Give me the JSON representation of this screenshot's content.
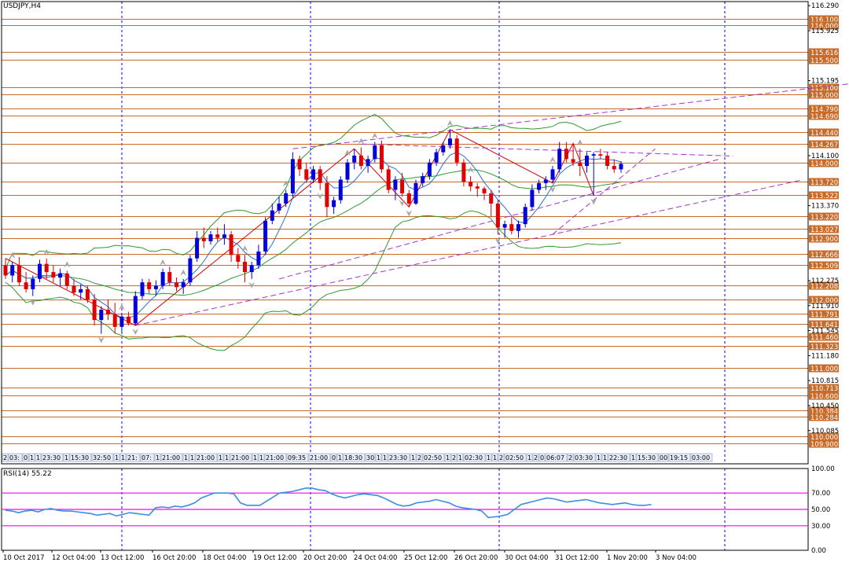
{
  "window": {
    "title": "USDJPY,H4"
  },
  "colors": {
    "bull": "#0000dd",
    "bear": "#e00000",
    "level_line": "#c86a28",
    "level_tag_bg": "#c86a28",
    "level_tag_text": "#ffffff",
    "trend_line": "#aa33cc",
    "band_line": "#2e9a2e",
    "fast_line": "#2b6fd6",
    "rsi_line": "#3a8fe0",
    "rsi_level": "#ff00ff",
    "vgrid": "#0000ff",
    "zigzag": "#cc0000",
    "arrow": "#a8a8a8"
  },
  "chart_data": {
    "type": "candlestick",
    "symbol": "USDJPY",
    "timeframe": "H4",
    "ylim": [
      109.6,
      116.35
    ],
    "price_ticks": [
      "116.290",
      "115.925",
      "115.195",
      "114.100",
      "113.370",
      "112.275",
      "111.910",
      "111.545",
      "111.180",
      "110.815",
      "110.450",
      "110.085"
    ],
    "levels": [
      "116.100",
      "116.000",
      "115.616",
      "115.500",
      "115.100",
      "115.000",
      "114.790",
      "114.690",
      "114.440",
      "114.267",
      "114.000",
      "113.720",
      "113.522",
      "113.220",
      "113.027",
      "112.900",
      "112.666",
      "112.509",
      "112.208",
      "112.000",
      "111.791",
      "111.641",
      "111.460",
      "111.323",
      "111.000",
      "110.713",
      "110.600",
      "110.384",
      "110.284",
      "110.000",
      "109.900"
    ],
    "level_values": [
      116.1,
      116.0,
      115.616,
      115.5,
      115.1,
      115.0,
      114.79,
      114.69,
      114.44,
      114.267,
      114.0,
      113.72,
      113.522,
      113.22,
      113.027,
      112.9,
      112.666,
      112.509,
      112.208,
      112.0,
      111.791,
      111.641,
      111.46,
      111.323,
      111.0,
      110.713,
      110.6,
      110.384,
      110.284,
      110.0,
      109.9
    ],
    "candles": [
      [
        112.5,
        112.6,
        112.3,
        112.35
      ],
      [
        112.35,
        112.55,
        112.25,
        112.5
      ],
      [
        112.5,
        112.62,
        112.2,
        112.25
      ],
      [
        112.25,
        112.4,
        112.1,
        112.15
      ],
      [
        112.15,
        112.35,
        112.05,
        112.3
      ],
      [
        112.3,
        112.58,
        112.25,
        112.52
      ],
      [
        112.52,
        112.6,
        112.3,
        112.4
      ],
      [
        112.4,
        112.5,
        112.25,
        112.32
      ],
      [
        112.32,
        112.45,
        112.2,
        112.38
      ],
      [
        112.38,
        112.42,
        112.15,
        112.2
      ],
      [
        112.2,
        112.3,
        112.05,
        112.1
      ],
      [
        112.1,
        112.22,
        112.0,
        112.15
      ],
      [
        112.15,
        112.2,
        111.95,
        112.0
      ],
      [
        112.0,
        112.08,
        111.62,
        111.7
      ],
      [
        111.7,
        111.9,
        111.5,
        111.85
      ],
      [
        111.85,
        112.0,
        111.7,
        111.78
      ],
      [
        111.78,
        111.95,
        111.5,
        111.6
      ],
      [
        111.6,
        111.8,
        111.52,
        111.75
      ],
      [
        111.75,
        111.82,
        111.62,
        111.65
      ],
      [
        111.65,
        112.12,
        111.62,
        112.05
      ],
      [
        112.05,
        112.3,
        112.0,
        112.25
      ],
      [
        112.25,
        112.3,
        112.08,
        112.15
      ],
      [
        112.15,
        112.28,
        112.05,
        112.2
      ],
      [
        112.2,
        112.45,
        112.15,
        112.4
      ],
      [
        112.4,
        112.48,
        112.2,
        112.25
      ],
      [
        112.25,
        112.32,
        112.12,
        112.18
      ],
      [
        112.18,
        112.3,
        112.08,
        112.25
      ],
      [
        112.25,
        112.65,
        112.2,
        112.6
      ],
      [
        112.6,
        113.0,
        112.55,
        112.9
      ],
      [
        112.9,
        113.05,
        112.75,
        112.85
      ],
      [
        112.85,
        113.0,
        112.8,
        112.95
      ],
      [
        112.95,
        113.05,
        112.85,
        112.9
      ],
      [
        112.9,
        113.1,
        112.8,
        112.95
      ],
      [
        112.95,
        113.0,
        112.55,
        112.65
      ],
      [
        112.65,
        112.75,
        112.45,
        112.55
      ],
      [
        112.55,
        112.65,
        112.25,
        112.4
      ],
      [
        112.4,
        112.55,
        112.3,
        112.5
      ],
      [
        112.5,
        112.8,
        112.45,
        112.7
      ],
      [
        112.7,
        113.2,
        112.65,
        113.15
      ],
      [
        113.15,
        113.4,
        113.1,
        113.3
      ],
      [
        113.3,
        113.5,
        113.25,
        113.4
      ],
      [
        113.4,
        113.6,
        113.35,
        113.55
      ],
      [
        113.55,
        114.15,
        113.5,
        114.05
      ],
      [
        114.05,
        114.1,
        113.8,
        113.9
      ],
      [
        113.9,
        114.0,
        113.7,
        113.75
      ],
      [
        113.75,
        113.95,
        113.7,
        113.9
      ],
      [
        113.9,
        113.95,
        113.6,
        113.7
      ],
      [
        113.7,
        113.8,
        113.2,
        113.35
      ],
      [
        113.35,
        113.5,
        113.25,
        113.45
      ],
      [
        113.45,
        113.8,
        113.4,
        113.75
      ],
      [
        113.75,
        114.05,
        113.7,
        114.0
      ],
      [
        114.0,
        114.2,
        113.9,
        114.1
      ],
      [
        114.1,
        114.22,
        113.9,
        113.95
      ],
      [
        113.95,
        114.1,
        113.85,
        114.05
      ],
      [
        114.05,
        114.3,
        114.0,
        114.25
      ],
      [
        114.25,
        114.32,
        113.85,
        113.9
      ],
      [
        113.9,
        113.95,
        113.55,
        113.6
      ],
      [
        113.6,
        113.8,
        113.45,
        113.75
      ],
      [
        113.75,
        113.85,
        113.5,
        113.55
      ],
      [
        113.55,
        113.6,
        113.35,
        113.4
      ],
      [
        113.4,
        113.75,
        113.38,
        113.7
      ],
      [
        113.7,
        113.85,
        113.65,
        113.8
      ],
      [
        113.8,
        114.05,
        113.75,
        114.0
      ],
      [
        114.0,
        114.2,
        113.95,
        114.15
      ],
      [
        114.15,
        114.3,
        114.1,
        114.25
      ],
      [
        114.25,
        114.48,
        114.2,
        114.35
      ],
      [
        114.35,
        114.4,
        113.95,
        114.0
      ],
      [
        114.0,
        114.05,
        113.65,
        113.72
      ],
      [
        113.72,
        113.8,
        113.58,
        113.65
      ],
      [
        113.65,
        113.7,
        113.5,
        113.62
      ],
      [
        113.62,
        113.65,
        113.45,
        113.55
      ],
      [
        113.55,
        113.6,
        113.2,
        113.4
      ],
      [
        113.4,
        113.45,
        112.95,
        113.05
      ],
      [
        113.05,
        113.15,
        112.9,
        113.1
      ],
      [
        113.1,
        113.2,
        112.95,
        113.0
      ],
      [
        113.0,
        113.15,
        112.9,
        113.1
      ],
      [
        113.1,
        113.4,
        113.05,
        113.35
      ],
      [
        113.35,
        113.68,
        113.3,
        113.6
      ],
      [
        113.6,
        113.75,
        113.55,
        113.7
      ],
      [
        113.7,
        113.8,
        113.6,
        113.75
      ],
      [
        113.75,
        113.95,
        113.7,
        113.9
      ],
      [
        113.9,
        114.3,
        113.85,
        114.2
      ],
      [
        114.2,
        114.3,
        114.0,
        114.05
      ],
      [
        114.05,
        114.28,
        113.95,
        114.0
      ],
      [
        114.0,
        114.2,
        113.8,
        113.95
      ],
      [
        113.95,
        114.15,
        113.85,
        114.1
      ],
      [
        114.1,
        114.15,
        113.52,
        114.12
      ],
      [
        114.12,
        114.2,
        114.05,
        114.1
      ],
      [
        114.1,
        114.15,
        113.9,
        113.95
      ],
      [
        113.95,
        114.05,
        113.85,
        113.9
      ],
      [
        113.9,
        114.02,
        113.85,
        113.98
      ]
    ],
    "time_labels": [
      "10 Oct 2017",
      "12 Oct 04:00",
      "13 Oct 12:00",
      "16 Oct 20:00",
      "18 Oct 04:00",
      "19 Oct 12:00",
      "20 Oct 20:00",
      "24 Oct 04:00",
      "25 Oct 12:00",
      "26 Oct 20:00",
      "30 Oct 04:00",
      "31 Oct 12:00",
      "1 Nov 20:00",
      "3 Nov 04:00"
    ],
    "rsi_label": "RSI(14) 55.22",
    "rsi_ylim": [
      0,
      100
    ],
    "rsi_ticks": [
      "100.00",
      "70.00",
      "50.00",
      "30.00",
      "0.00"
    ],
    "rsi_levels": [
      70,
      50,
      30
    ],
    "rsi_values": [
      49,
      48,
      46,
      48,
      49,
      47,
      50,
      51,
      49,
      48,
      48,
      47,
      46,
      45,
      43,
      44,
      45,
      42,
      44,
      46,
      45,
      44,
      43,
      52,
      53,
      52,
      54,
      53,
      55,
      58,
      64,
      67,
      70,
      70,
      70,
      69,
      58,
      55,
      55,
      55,
      60,
      65,
      70,
      71,
      72,
      74,
      76,
      76,
      74,
      73,
      69,
      66,
      64,
      66,
      68,
      69,
      68,
      67,
      64,
      60,
      56,
      54,
      55,
      58,
      59,
      60,
      62,
      60,
      58,
      54,
      52,
      51,
      50,
      48,
      40,
      41,
      42,
      44,
      50,
      56,
      58,
      60,
      62,
      64,
      63,
      61,
      59,
      60,
      61,
      62,
      60,
      58,
      57,
      56,
      57,
      58,
      56,
      55,
      55,
      56
    ]
  },
  "bottom_tags": [
    "2",
    "03:",
    "0",
    "1",
    "1",
    "23:30",
    "1",
    "15:30",
    "32:50",
    "1",
    "1",
    "21:",
    "07:",
    "1",
    "21:00",
    "1",
    "1",
    "21:00",
    "1",
    "1",
    "21:00",
    "1",
    "1",
    "21:00",
    "09:35",
    "21:00",
    "0",
    "1",
    "18:30",
    "30",
    "1",
    "1",
    "23:30",
    "1",
    "2",
    "02:50",
    "1",
    "2",
    "1",
    "02:30",
    "1",
    "1",
    "2",
    "02:50",
    "1",
    "2",
    "0",
    "06:07",
    "2",
    "03:30",
    "1",
    "1",
    "22:30",
    "1",
    "15:30",
    "00",
    "19:15",
    "03:00"
  ]
}
